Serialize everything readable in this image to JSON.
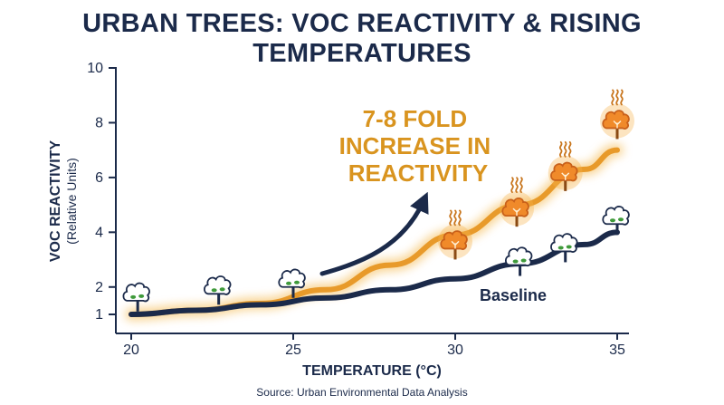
{
  "title": "URBAN TREES: VOC REACTIVITY & RISING TEMPERATURES",
  "source": "Source: Urban Environmental Data Analysis",
  "colors": {
    "navy": "#1b2a4a",
    "orange": "#e89a2a",
    "annotation": "#d9941f",
    "tree_green": "#3f9a3a",
    "hot_tree": "#f08a2a"
  },
  "icons": [
    "tree-icon",
    "hot-tree-icon",
    "heat-wave-icon"
  ],
  "chart_data": {
    "type": "line",
    "xlabel": "TEMPERATURE (°C)",
    "ylabel": "VOC REACTIVITY",
    "ylabel_sub": "(Relative Units)",
    "xlim": [
      20,
      35
    ],
    "ylim": [
      1,
      10
    ],
    "x_ticks": [
      20,
      25,
      30,
      35
    ],
    "y_ticks": [
      1,
      2,
      4,
      6,
      8,
      10
    ],
    "grid": false,
    "series": [
      {
        "name": "Baseline",
        "x": [
          20,
          22,
          24,
          26,
          28,
          30,
          32,
          34,
          35
        ],
        "values": [
          1.0,
          1.15,
          1.35,
          1.6,
          1.9,
          2.3,
          2.85,
          3.55,
          4.0
        ]
      },
      {
        "x": [
          20,
          22,
          24,
          26,
          28,
          30,
          32,
          34,
          35
        ],
        "values": [
          1.0,
          1.15,
          1.4,
          1.9,
          2.8,
          3.9,
          5.0,
          6.3,
          7.0
        ]
      }
    ],
    "annotation": {
      "lines": [
        "7-8 FOLD",
        "INCREASE IN",
        "REACTIVITY"
      ]
    },
    "trees_baseline": [
      {
        "x": 20.2,
        "y": 1.7
      },
      {
        "x": 22.7,
        "y": 1.95
      },
      {
        "x": 25.0,
        "y": 2.2
      },
      {
        "x": 32.0,
        "y": 3.0
      },
      {
        "x": 33.4,
        "y": 3.5
      },
      {
        "x": 35.0,
        "y": 4.5
      }
    ],
    "trees_hot": [
      {
        "x": 30.0,
        "y": 3.6
      },
      {
        "x": 31.9,
        "y": 4.8
      },
      {
        "x": 33.4,
        "y": 6.1
      },
      {
        "x": 35.0,
        "y": 8.0
      }
    ]
  }
}
